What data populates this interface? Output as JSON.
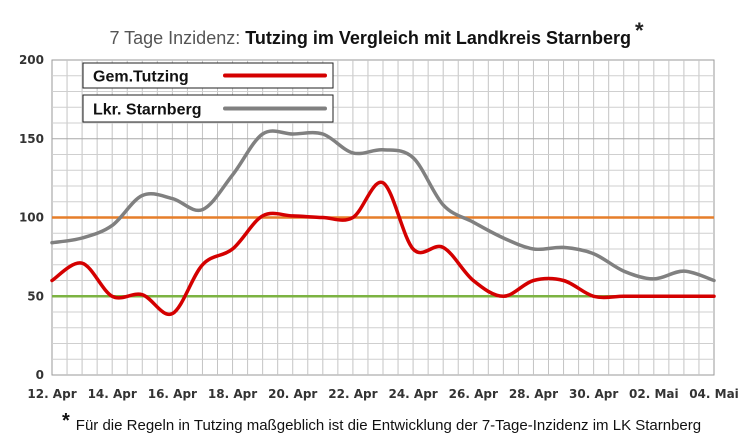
{
  "title": {
    "prefix": "7 Tage Inzidenz:",
    "main": "Tutzing im Vergleich mit Landkreis Starnberg",
    "marker": "*"
  },
  "footnote": {
    "marker": "*",
    "text": "Für die Regeln in Tutzing maßgeblich ist die Entwicklung der 7-Tage-Inzidenz im LK Starnberg"
  },
  "chart_data": {
    "type": "line",
    "x": [
      "12. Apr",
      "13. Apr",
      "14. Apr",
      "15. Apr",
      "16. Apr",
      "17. Apr",
      "18. Apr",
      "19. Apr",
      "20. Apr",
      "21. Apr",
      "22. Apr",
      "23. Apr",
      "24. Apr",
      "25. Apr",
      "26. Apr",
      "27. Apr",
      "28. Apr",
      "29. Apr",
      "30. Apr",
      "01. Mai",
      "02. Mai",
      "03. Mai",
      "04. Mai"
    ],
    "x_tick_labels": [
      "12. Apr",
      "14. Apr",
      "16. Apr",
      "18. Apr",
      "20. Apr",
      "22. Apr",
      "24. Apr",
      "26. Apr",
      "28. Apr",
      "30. Apr",
      "02. Mai",
      "04. Mai"
    ],
    "ylim": [
      0,
      200
    ],
    "y_ticks": [
      0,
      50,
      100,
      150,
      200
    ],
    "grid": true,
    "legend_position": "top-left",
    "series": [
      {
        "name": "Gem.Tutzing",
        "color": "#d40000",
        "values": [
          60,
          71,
          50,
          51,
          39,
          70,
          80,
          101,
          101,
          100,
          100,
          122,
          80,
          81,
          60,
          50,
          60,
          60,
          50,
          50,
          50,
          50,
          50
        ]
      },
      {
        "name": "Lkr. Starnberg",
        "color": "#808080",
        "values": [
          84,
          87,
          95,
          114,
          112,
          105,
          127,
          153,
          153,
          153,
          141,
          143,
          138,
          108,
          97,
          87,
          80,
          81,
          77,
          66,
          61,
          66,
          60
        ]
      }
    ],
    "reference_lines": [
      {
        "value": 100,
        "color": "#e67e2a"
      },
      {
        "value": 50,
        "color": "#7cb342"
      }
    ]
  }
}
